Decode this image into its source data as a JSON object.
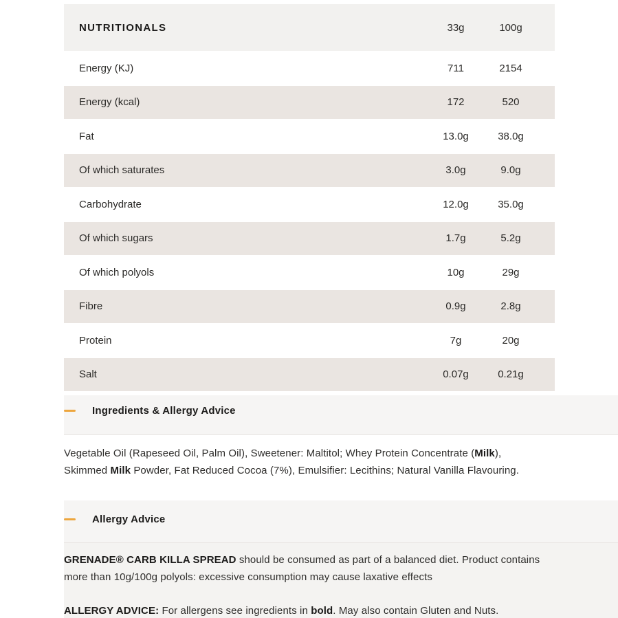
{
  "colors": {
    "accent_orange": "#eda63e",
    "row_alt_beige": "#eae5e1",
    "table_header_bg": "#f2f1ef",
    "accordion_header_bg": "#f6f5f4",
    "allergy_body_bg": "#f4f3f1",
    "divider": "#e8e5e2",
    "text": "#2b2a28"
  },
  "table": {
    "header": {
      "label": "NUTRITIONALS",
      "col1": "33g",
      "col2": "100g"
    },
    "rows": [
      {
        "label": "Energy (KJ)",
        "col1": "711",
        "col2": "2154"
      },
      {
        "label": "Energy (kcal)",
        "col1": "172",
        "col2": "520"
      },
      {
        "label": "Fat",
        "col1": "13.0g",
        "col2": "38.0g"
      },
      {
        "label": "Of which saturates",
        "col1": "3.0g",
        "col2": "9.0g"
      },
      {
        "label": "Carbohydrate",
        "col1": "12.0g",
        "col2": "35.0g"
      },
      {
        "label": "Of which sugars",
        "col1": "1.7g",
        "col2": "5.2g"
      },
      {
        "label": "Of which polyols",
        "col1": "10g",
        "col2": "29g"
      },
      {
        "label": "Fibre",
        "col1": "0.9g",
        "col2": "2.8g"
      },
      {
        "label": "Protein",
        "col1": "7g",
        "col2": "20g"
      },
      {
        "label": "Salt",
        "col1": "0.07g",
        "col2": "0.21g"
      }
    ]
  },
  "accordion": {
    "ingredients": {
      "title": "Ingredients & Allergy Advice",
      "icon": "minus-icon"
    },
    "allergy": {
      "title": "Allergy Advice",
      "icon": "minus-icon"
    }
  },
  "ingredients_text": {
    "part1": "Vegetable Oil (Rapeseed Oil, Palm Oil), Sweetener: Maltitol; Whey Protein Concentrate (",
    "bold1": "Milk",
    "part2": "), Skimmed ",
    "bold2": "Milk",
    "part3": " Powder, Fat Reduced Cocoa (7%), Emulsifier: Lecithins; Natural Vanilla Flavouring."
  },
  "advisory_text": {
    "bold1": "GRENADE® CARB KILLA SPREAD",
    "part1": " should be consumed as part of a balanced diet. Product contains more than 10g/100g polyols: excessive consumption may cause laxative effects"
  },
  "allergy_text": {
    "bold1": "ALLERGY ADVICE:",
    "part1": " For allergens see ingredients in ",
    "bold2": "bold",
    "part2": ". May also contain Gluten and Nuts."
  }
}
